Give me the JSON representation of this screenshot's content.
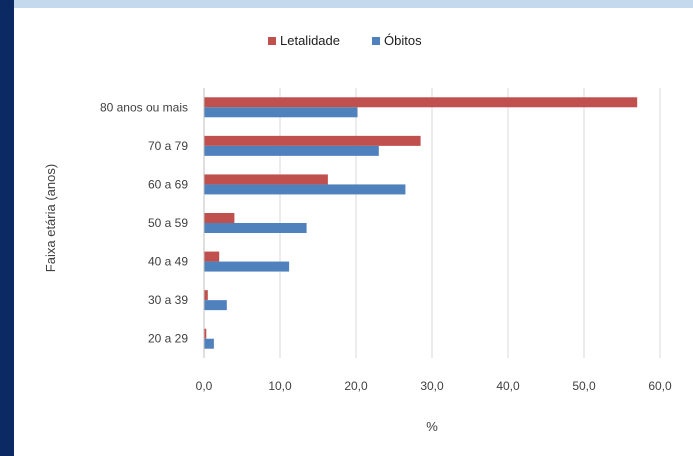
{
  "chart_data": {
    "type": "bar",
    "orientation": "horizontal",
    "title": "",
    "xlabel": "%",
    "ylabel": "Faixa etária (anos)",
    "categories": [
      "80 anos ou mais",
      "70 a 79",
      "60 a 69",
      "50 a 59",
      "40 a 49",
      "30 a 39",
      "20 a 29"
    ],
    "series": [
      {
        "name": "Letalidade",
        "color": "#c0504d",
        "values": [
          57.0,
          28.5,
          16.3,
          4.0,
          2.0,
          0.5,
          0.3
        ]
      },
      {
        "name": "Óbitos",
        "color": "#4f81bd",
        "values": [
          20.2,
          23.0,
          26.5,
          13.5,
          11.2,
          3.0,
          1.3
        ]
      }
    ],
    "xlim": [
      0,
      60
    ],
    "x_ticks": [
      "0,0",
      "10,0",
      "20,0",
      "30,0",
      "40,0",
      "50,0",
      "60,0"
    ],
    "grid": "vertical",
    "legend_position": "top"
  }
}
